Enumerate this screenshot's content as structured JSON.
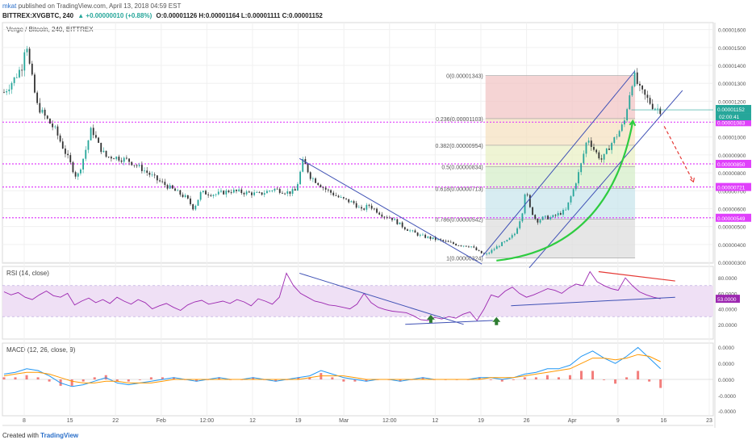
{
  "header": {
    "line1_user": "mkat",
    "line1_rest": "published on TradingView.com, April 13, 2018 04:59 EST",
    "symbol": "BITTREX:XVGBTC, 240",
    "change": "▲ +0.00000010 (+0.88%)",
    "ohlc": "O:0.00001126 H:0.00001164 L:0.00001111 C:0.00001152"
  },
  "main_label": "Verge / Bitcoin, 240, BITTREX",
  "rsi_label": "RSI (14, close)",
  "macd_label": "MACD (12, 26, close, 9)",
  "footer": {
    "created": "Created with",
    "brand": "TradingView"
  },
  "colors": {
    "up": "#26a69a",
    "down": "#333333",
    "fib_line": "#e040fb",
    "trend": "#3f51b5",
    "green_curve": "#2ecc40",
    "red": "#e53935",
    "rsi_line": "#9c27b0",
    "rsi_band": "#efe0f5",
    "macd_line": "#2196f3",
    "signal_line": "#ff9800",
    "hist": "#ef5350"
  },
  "chart_data": {
    "type": "candlestick",
    "price_axis": {
      "ticks": [
        "0.00001600",
        "0.00001500",
        "0.00001400",
        "0.00001300",
        "0.00001200",
        "0.00001100",
        "0.00001000",
        "0.00000900",
        "0.00000800",
        "0.00000700",
        "0.00000600",
        "0.00000500",
        "0.00000400",
        "0.00000300"
      ],
      "current_price": "0.00001152",
      "countdown": "02:00:41",
      "level_labels": [
        "0.00001083",
        "0.00000850",
        "0.00000721",
        "0.00000549"
      ]
    },
    "x_axis": {
      "ticks": [
        "8",
        "15",
        "22",
        "Feb",
        "12:00",
        "12",
        "19",
        "Mar",
        "12:00",
        "12",
        "19",
        "26",
        "Apr",
        "9",
        "16",
        "23"
      ]
    },
    "price_path": [
      [
        0,
        1.25e-05
      ],
      [
        1.5,
        1.33e-05
      ],
      [
        2.5,
        1.4e-05
      ],
      [
        3,
        1.56e-05
      ],
      [
        3.5,
        1.4e-05
      ],
      [
        4.5,
        1.18e-05
      ],
      [
        5.5,
        1.12e-05
      ],
      [
        7,
        1.04e-05
      ],
      [
        8,
        9.5e-06
      ],
      [
        9,
        8.6e-06
      ],
      [
        10,
        7.7e-06
      ],
      [
        11,
        9e-06
      ],
      [
        12,
        1.05e-05
      ],
      [
        13,
        9.5e-06
      ],
      [
        14,
        8.9e-06
      ],
      [
        15,
        8.9e-06
      ],
      [
        17,
        8.7e-06
      ],
      [
        19,
        8.2e-06
      ],
      [
        21,
        7.6e-06
      ],
      [
        23,
        7.1e-06
      ],
      [
        25,
        6.6e-06
      ],
      [
        26,
        6e-06
      ],
      [
        27,
        6.9e-06
      ],
      [
        29,
        6.8e-06
      ],
      [
        31,
        7e-06
      ],
      [
        33,
        6.9e-06
      ],
      [
        35,
        6.8e-06
      ],
      [
        37,
        7.1e-06
      ],
      [
        39,
        6.9e-06
      ],
      [
        40,
        7e-06
      ],
      [
        41,
        8.7e-06
      ],
      [
        42,
        7.8e-06
      ],
      [
        44,
        7.1e-06
      ],
      [
        46,
        6.6e-06
      ],
      [
        48,
        6.3e-06
      ],
      [
        49,
        5.9e-06
      ],
      [
        50,
        6.2e-06
      ],
      [
        51,
        5.9e-06
      ],
      [
        52,
        5.6e-06
      ],
      [
        53,
        5.5e-06
      ],
      [
        55,
        4.9e-06
      ],
      [
        57,
        4.5e-06
      ],
      [
        58,
        4.4e-06
      ],
      [
        60,
        4.2e-06
      ],
      [
        62,
        4e-06
      ],
      [
        64,
        3.9e-06
      ],
      [
        65,
        3.6e-06
      ],
      [
        66,
        3.4e-06
      ],
      [
        67,
        3.7e-06
      ],
      [
        68,
        4e-06
      ],
      [
        69,
        4.2e-06
      ],
      [
        70,
        4.6e-06
      ],
      [
        71,
        5.7e-06
      ],
      [
        71.5,
        7.2e-06
      ],
      [
        72,
        6.1e-06
      ],
      [
        73,
        5.3e-06
      ],
      [
        74,
        5.5e-06
      ],
      [
        75,
        5.5e-06
      ],
      [
        76,
        5.7e-06
      ],
      [
        77,
        5.9e-06
      ],
      [
        78,
        7e-06
      ],
      [
        79,
        8.3e-06
      ],
      [
        80,
        1e-05
      ],
      [
        81,
        9.2e-06
      ],
      [
        82,
        8.7e-06
      ],
      [
        83,
        9.5e-06
      ],
      [
        84,
        1.01e-05
      ],
      [
        85,
        1.08e-05
      ],
      [
        86,
        1.3e-05
      ],
      [
        86.5,
        1.34e-05
      ],
      [
        87,
        1.27e-05
      ],
      [
        88,
        1.22e-05
      ],
      [
        89,
        1.17e-05
      ],
      [
        90,
        1.15e-05
      ]
    ],
    "fibonacci": {
      "levels": [
        {
          "label": "0(0.00001343)",
          "value": 1.343e-05
        },
        {
          "label": "0.236(0.00001103)",
          "value": 1.103e-05
        },
        {
          "label": "0.382(0.00000954)",
          "value": 9.54e-06
        },
        {
          "label": "0.5(0.00000834)",
          "value": 8.34e-06
        },
        {
          "label": "0.618(0.00000713)",
          "value": 7.13e-06
        },
        {
          "label": "0.786(0.00000542)",
          "value": 5.42e-06
        },
        {
          "label": "1(0.00000324)",
          "value": 3.24e-06
        }
      ],
      "zone_colors": [
        "#f2c6c6",
        "#f6e2c2",
        "#eaf0c6",
        "#d5eec9",
        "#c9e5ec",
        "#dedede"
      ]
    },
    "horizontal_levels": [
      1.083e-05,
      8.5e-06,
      7.21e-06,
      5.49e-06
    ],
    "rsi": {
      "ticks": [
        "80.0000",
        "60.0000",
        "40.0000",
        "20.0000"
      ],
      "band": [
        30,
        70
      ],
      "current": "53.0000",
      "values": [
        62,
        58,
        61,
        55,
        52,
        58,
        63,
        57,
        55,
        60,
        45,
        50,
        54,
        48,
        52,
        47,
        55,
        50,
        46,
        52,
        48,
        40,
        44,
        47,
        42,
        38,
        45,
        49,
        51,
        46,
        48,
        50,
        47,
        52,
        49,
        44,
        53,
        50,
        46,
        55,
        86,
        70,
        60,
        55,
        50,
        48,
        45,
        44,
        42,
        40,
        46,
        60,
        48,
        42,
        39,
        37,
        36,
        35,
        31,
        26,
        25,
        29,
        27,
        30,
        28,
        33,
        36,
        25,
        40,
        58,
        55,
        63,
        68,
        60,
        55,
        58,
        62,
        66,
        64,
        60,
        67,
        72,
        70,
        88,
        75,
        70,
        66,
        64,
        80,
        70,
        62,
        58,
        55,
        53
      ]
    },
    "macd": {
      "ticks": [
        "0.0000",
        "0.0000",
        "0.0000",
        "-0.0000",
        "-0.0000"
      ],
      "values": [
        3e-07,
        4e-07,
        6e-07,
        5e-07,
        2e-07,
        -2e-07,
        -4e-07,
        -3e-07,
        -1e-07,
        1e-07,
        -2e-07,
        -3e-07,
        -2e-07,
        -1e-07,
        0.0,
        1e-07,
        0.0,
        -1e-07,
        0.0,
        1e-07,
        0.0,
        0.0,
        1e-07,
        0.0,
        -1e-07,
        0.0,
        1e-07,
        2e-07,
        5e-07,
        3e-07,
        1e-07,
        0.0,
        -1e-07,
        0.0,
        0.0,
        -1e-07,
        0.0,
        1e-07,
        0.0,
        0.0,
        0.0,
        0.0,
        1e-07,
        1e-07,
        0.0,
        1e-07,
        3e-07,
        4e-07,
        6e-07,
        6e-07,
        8e-07,
        1.3e-06,
        1.6e-06,
        1.2e-06,
        9e-07,
        1.3e-06,
        1.8e-06,
        1.2e-06,
        6e-07
      ],
      "signal": [
        2e-07,
        3e-07,
        4e-07,
        4e-07,
        3e-07,
        1e-07,
        -1e-07,
        -2e-07,
        -2e-07,
        -1e-07,
        -1e-07,
        -2e-07,
        -2e-07,
        -2e-07,
        -1e-07,
        0.0,
        0.0,
        0.0,
        0.0,
        0.0,
        0.0,
        0.0,
        0.0,
        0.0,
        0.0,
        0.0,
        0.0,
        1e-07,
        2e-07,
        2e-07,
        2e-07,
        1e-07,
        0.0,
        0.0,
        0.0,
        0.0,
        0.0,
        0.0,
        0.0,
        0.0,
        0.0,
        0.0,
        0.0,
        1e-07,
        1e-07,
        1e-07,
        2e-07,
        3e-07,
        4e-07,
        5e-07,
        6e-07,
        9e-07,
        1.2e-06,
        1.2e-06,
        1.1e-06,
        1.2e-06,
        1.4e-06,
        1.3e-06,
        1e-06
      ]
    }
  }
}
